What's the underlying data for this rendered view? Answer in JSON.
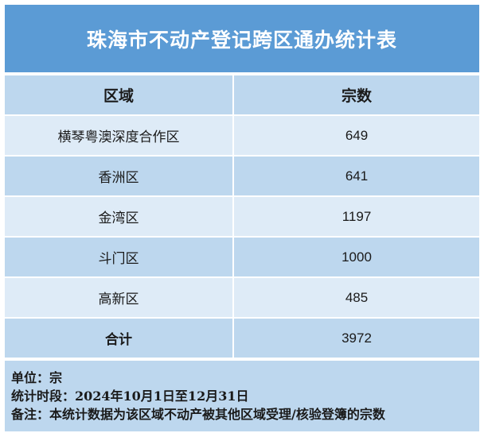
{
  "title": "珠海市不动产登记跨区通办统计表",
  "table": {
    "headers": [
      "区域",
      "宗数"
    ],
    "rows": [
      {
        "region": "横琴粤澳深度合作区",
        "count": "649"
      },
      {
        "region": "香洲区",
        "count": "641"
      },
      {
        "region": "金湾区",
        "count": "1197"
      },
      {
        "region": "斗门区",
        "count": "1000"
      },
      {
        "region": "高新区",
        "count": "485"
      }
    ],
    "total": {
      "label": "合计",
      "count": "3972"
    }
  },
  "notes": {
    "unit": "单位：宗",
    "period": "统计时段：2024年10月1日至12月31日",
    "remark": "备注：本统计数据为该区域不动产被其他区域受理/核验登簿的宗数"
  },
  "colors": {
    "title_bg": "#5b9bd5",
    "row_dark": "#bdd7ee",
    "row_light": "#deebf7"
  }
}
